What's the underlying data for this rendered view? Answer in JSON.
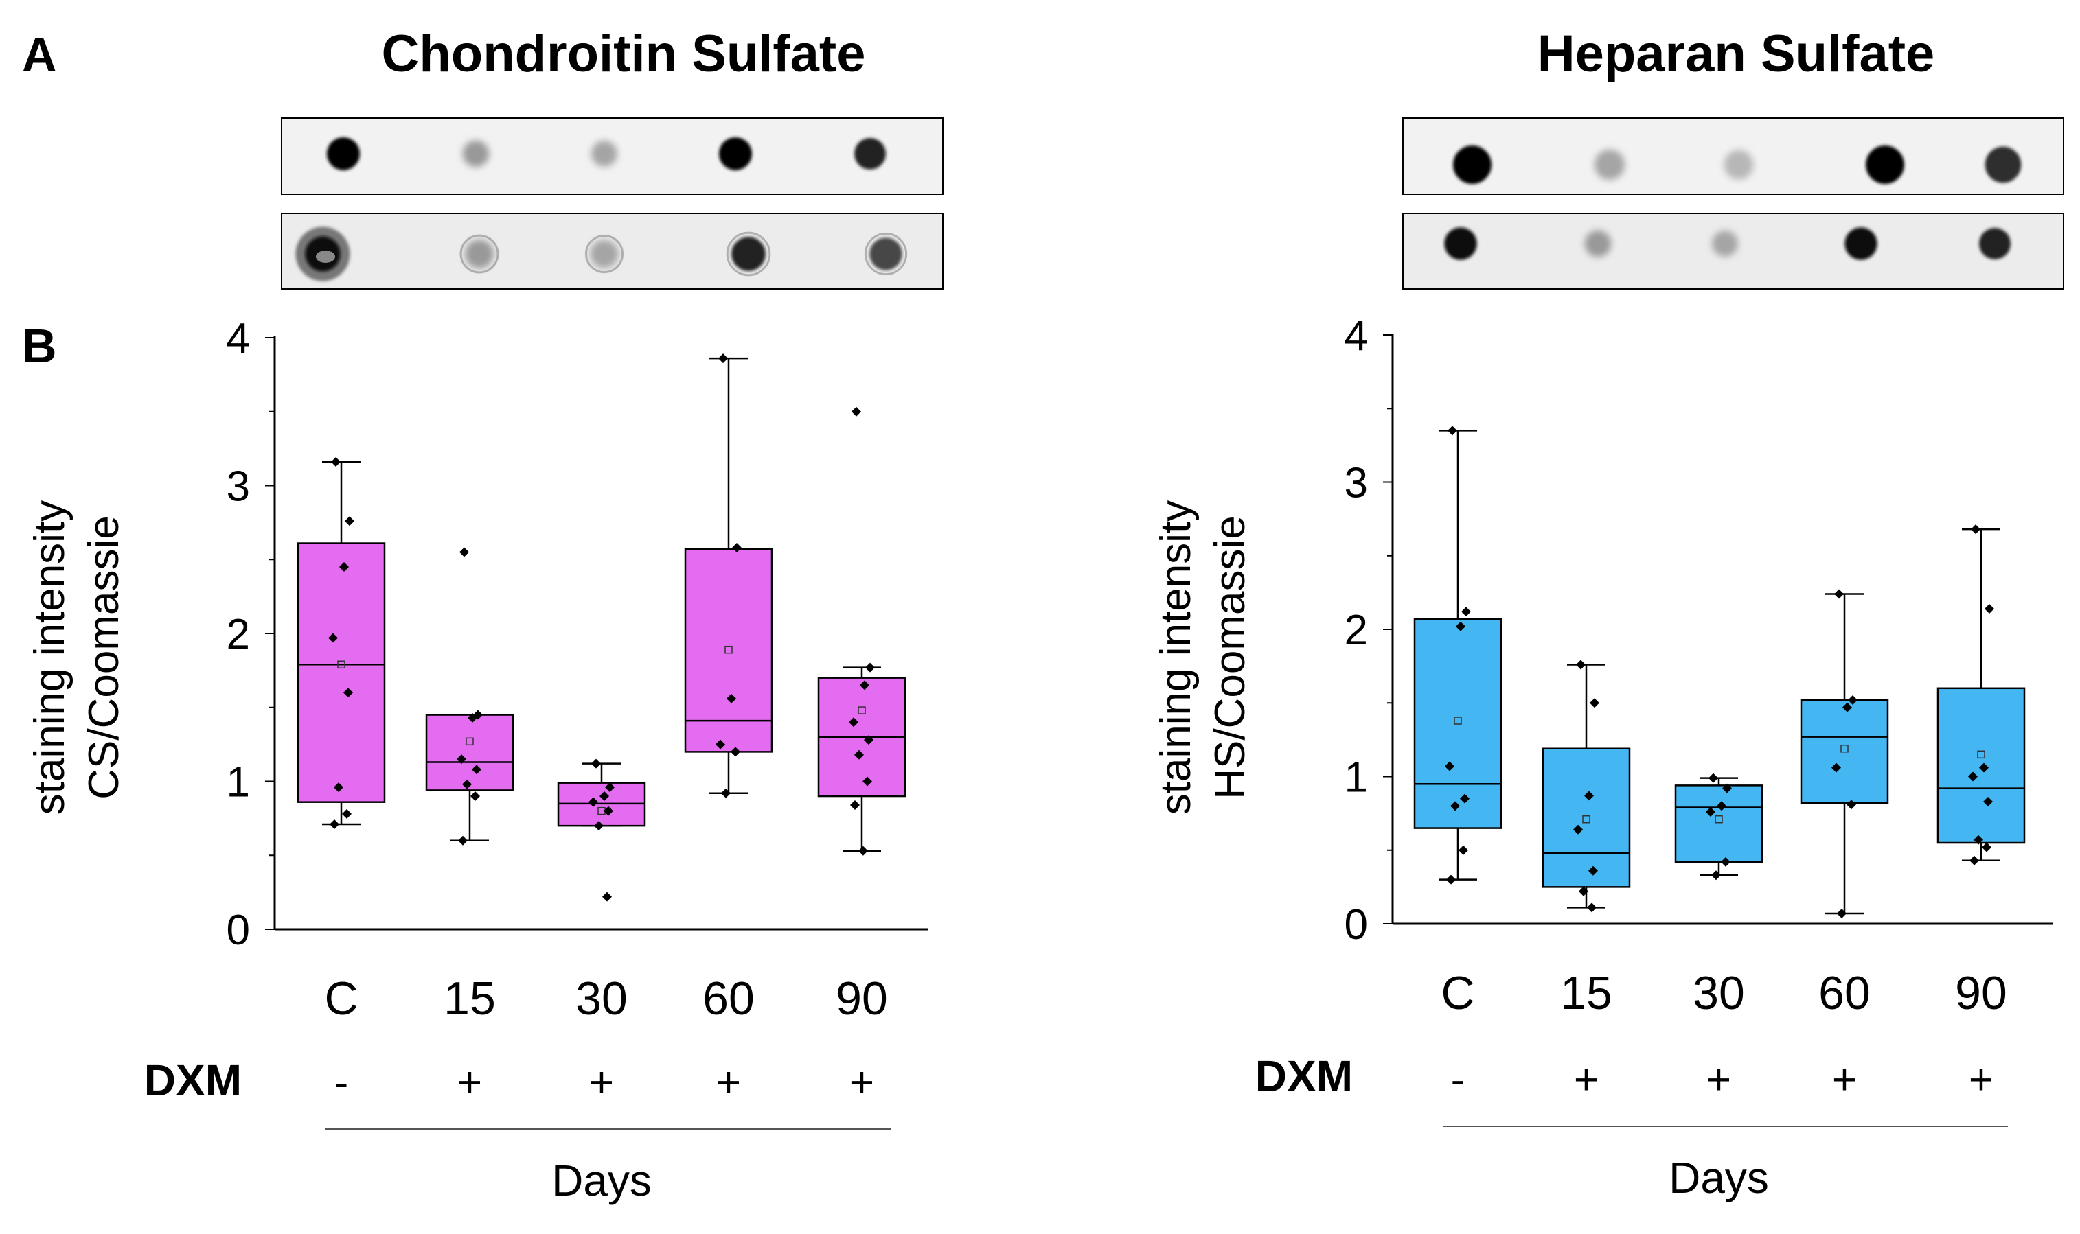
{
  "panel_labels": {
    "a": "A",
    "b": "B"
  },
  "blots": {
    "note": "dot blot images: top row = GAG stain, bottom row = Coomassie",
    "cs_top_intensity": [
      1.0,
      0.35,
      0.3,
      1.0,
      0.85
    ],
    "cs_bottom_intensity": [
      0.95,
      0.35,
      0.3,
      0.85,
      0.7
    ],
    "hs_top_intensity": [
      1.0,
      0.3,
      0.22,
      1.0,
      0.8
    ],
    "hs_bottom_intensity": [
      0.95,
      0.35,
      0.3,
      0.95,
      0.85
    ]
  },
  "shared": {
    "dxm_label": "DXM",
    "dxm_signs": [
      "-",
      "+",
      "+",
      "+",
      "+"
    ],
    "days_label": "Days"
  },
  "chart_data": [
    {
      "type": "box",
      "title": "Chondroitin Sulfate",
      "ylabel_line1": "staining intensity",
      "ylabel_line2": "CS/Coomassie",
      "xlabel": "Days",
      "ylim": [
        0,
        4
      ],
      "yticks": [
        "0",
        "1",
        "2",
        "3",
        "4"
      ],
      "categories": [
        "C",
        "15",
        "30",
        "60",
        "90"
      ],
      "color": "#e36cf0",
      "boxes": [
        {
          "category": "C",
          "whisker_low": 0.71,
          "q1": 0.86,
          "median": 1.79,
          "q3": 2.61,
          "whisker_high": 3.16,
          "mean": 1.79,
          "points": [
            3.16,
            2.76,
            2.45,
            1.97,
            1.6,
            0.96,
            0.78,
            0.71
          ]
        },
        {
          "category": "15",
          "whisker_low": 0.6,
          "q1": 0.94,
          "median": 1.13,
          "q3": 1.45,
          "whisker_high": 1.45,
          "mean": 1.27,
          "points": [
            2.55,
            1.45,
            1.43,
            1.15,
            1.08,
            0.98,
            0.9,
            0.6
          ]
        },
        {
          "category": "30",
          "whisker_low": 0.7,
          "q1": 0.7,
          "median": 0.85,
          "q3": 0.99,
          "whisker_high": 1.12,
          "mean": 0.8,
          "points": [
            1.12,
            0.96,
            0.9,
            0.86,
            0.8,
            0.7,
            0.22
          ]
        },
        {
          "category": "60",
          "whisker_low": 0.92,
          "q1": 1.2,
          "median": 1.41,
          "q3": 2.57,
          "whisker_high": 3.86,
          "mean": 1.89,
          "points": [
            3.86,
            2.58,
            1.56,
            1.25,
            1.2,
            0.92
          ]
        },
        {
          "category": "90",
          "whisker_low": 0.53,
          "q1": 0.9,
          "median": 1.3,
          "q3": 1.7,
          "whisker_high": 1.77,
          "mean": 1.48,
          "points": [
            3.5,
            1.77,
            1.65,
            1.4,
            1.28,
            1.18,
            1.0,
            0.84,
            0.53
          ]
        }
      ]
    },
    {
      "type": "box",
      "title": "Heparan Sulfate",
      "ylabel_line1": "staining intensity",
      "ylabel_line2": "HS/Coomassie",
      "xlabel": "Days",
      "ylim": [
        0,
        4
      ],
      "yticks": [
        "0",
        "1",
        "2",
        "3",
        "4"
      ],
      "categories": [
        "C",
        "15",
        "30",
        "60",
        "90"
      ],
      "color": "#44b6f2",
      "boxes": [
        {
          "category": "C",
          "whisker_low": 0.3,
          "q1": 0.65,
          "median": 0.95,
          "q3": 2.07,
          "whisker_high": 3.35,
          "mean": 1.38,
          "points": [
            3.35,
            2.12,
            2.02,
            1.07,
            0.85,
            0.8,
            0.5,
            0.3
          ]
        },
        {
          "category": "15",
          "whisker_low": 0.11,
          "q1": 0.25,
          "median": 0.48,
          "q3": 1.19,
          "whisker_high": 1.76,
          "mean": 0.71,
          "points": [
            1.76,
            1.5,
            0.87,
            0.64,
            0.36,
            0.22,
            0.11
          ]
        },
        {
          "category": "30",
          "whisker_low": 0.33,
          "q1": 0.42,
          "median": 0.79,
          "q3": 0.94,
          "whisker_high": 0.99,
          "mean": 0.71,
          "points": [
            0.99,
            0.92,
            0.8,
            0.76,
            0.42,
            0.33
          ]
        },
        {
          "category": "60",
          "whisker_low": 0.07,
          "q1": 0.82,
          "median": 1.27,
          "q3": 1.52,
          "whisker_high": 2.24,
          "mean": 1.19,
          "points": [
            2.24,
            1.52,
            1.47,
            1.06,
            0.81,
            0.07
          ]
        },
        {
          "category": "90",
          "whisker_low": 0.43,
          "q1": 0.55,
          "median": 0.92,
          "q3": 1.6,
          "whisker_high": 2.68,
          "mean": 1.15,
          "points": [
            2.68,
            2.14,
            1.06,
            1.0,
            0.83,
            0.57,
            0.52,
            0.43
          ]
        }
      ]
    }
  ]
}
